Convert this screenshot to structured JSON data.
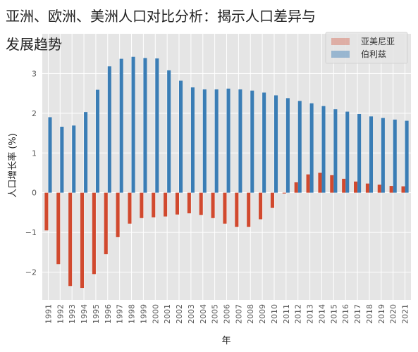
{
  "chart_data": {
    "type": "bar",
    "title_lines": [
      "亚洲、欧洲、美洲人口对比分析：揭示人口差异与",
      "发展趋势"
    ],
    "xlabel": "年",
    "ylabel": "人口增长率 (%)",
    "ylim": [
      -2.7,
      4.0
    ],
    "yticks": [
      -2,
      -1,
      0,
      1,
      2,
      3
    ],
    "grid": true,
    "legend_position": "top-right",
    "categories": [
      "1991",
      "1992",
      "1993",
      "1994",
      "1995",
      "1996",
      "1997",
      "1998",
      "1999",
      "2000",
      "2001",
      "2002",
      "2003",
      "2004",
      "2005",
      "2006",
      "2007",
      "2008",
      "2009",
      "2010",
      "2011",
      "2012",
      "2013",
      "2014",
      "2015",
      "2016",
      "2017",
      "2018",
      "2019",
      "2020",
      "2021"
    ],
    "series": [
      {
        "name": "亚美尼亚",
        "color": "#d1492e",
        "values": [
          -0.95,
          -1.8,
          -2.35,
          -2.4,
          -2.05,
          -1.55,
          -1.12,
          -0.78,
          -0.64,
          -0.62,
          -0.6,
          -0.55,
          -0.52,
          -0.56,
          -0.64,
          -0.78,
          -0.86,
          -0.86,
          -0.67,
          -0.38,
          -0.02,
          0.26,
          0.46,
          0.5,
          0.44,
          0.35,
          0.28,
          0.23,
          0.2,
          0.17,
          0.16
        ]
      },
      {
        "name": "伯利兹",
        "color": "#3a7db5",
        "values": [
          1.9,
          1.66,
          1.69,
          2.03,
          2.59,
          3.18,
          3.37,
          3.42,
          3.39,
          3.38,
          3.08,
          2.82,
          2.65,
          2.6,
          2.6,
          2.62,
          2.6,
          2.57,
          2.52,
          2.45,
          2.38,
          2.31,
          2.25,
          2.18,
          2.1,
          2.04,
          1.98,
          1.92,
          1.88,
          1.84,
          1.81
        ]
      }
    ]
  }
}
